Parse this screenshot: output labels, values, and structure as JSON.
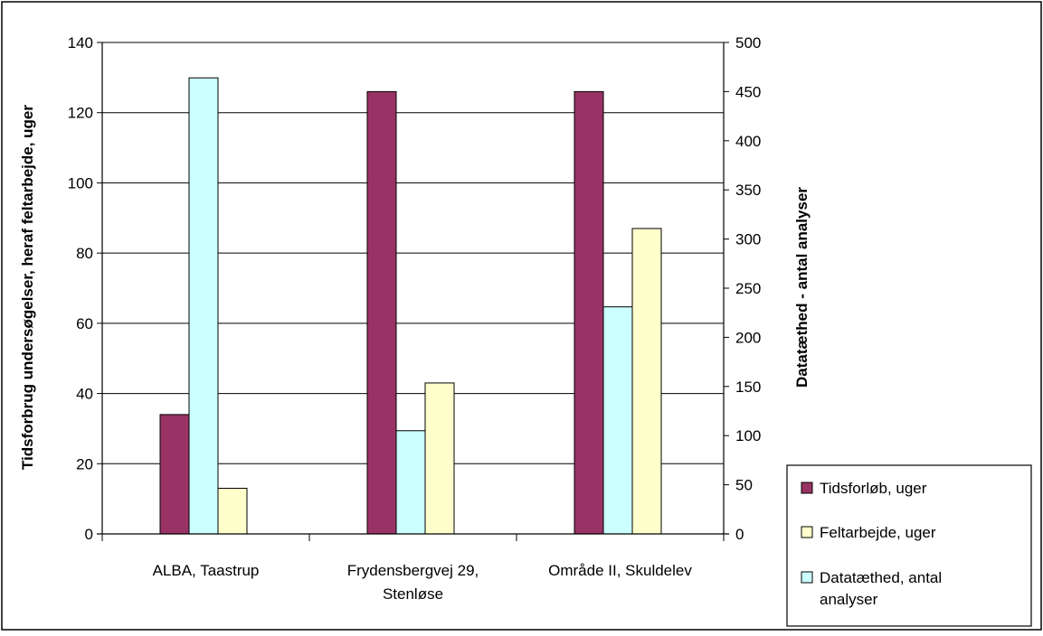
{
  "chart_data": {
    "type": "bar",
    "categories": [
      [
        "ALBA, Taastrup"
      ],
      [
        "Frydensbergvej 29,",
        "Stenløse"
      ],
      [
        "Område II, Skuldelev"
      ]
    ],
    "series": [
      {
        "name": "Tidsforløb, uger",
        "axis": "left",
        "color": "#993366",
        "values": [
          34,
          126,
          126
        ]
      },
      {
        "name": "Datatæthed, antal analyser",
        "axis": "right",
        "color": "#ccffff",
        "values": [
          464,
          105,
          231
        ]
      },
      {
        "name": "Feltarbejde, uger",
        "axis": "left",
        "color": "#ffffcc",
        "values": [
          13,
          43,
          87
        ]
      }
    ],
    "legend_order": [
      0,
      2,
      1
    ],
    "legend_labels": [
      [
        "Tidsforløb, uger"
      ],
      [
        "Feltarbejde, uger"
      ],
      [
        "Datatæthed, antal",
        "analyser"
      ]
    ],
    "ylabel": "Tidsforbrug undersøgelser, heraf feltarbejde, uger",
    "y2label": "Datatæthed - antal analyser",
    "ylim": [
      0,
      140
    ],
    "y2lim": [
      0,
      500
    ],
    "yticks": [
      0,
      20,
      40,
      60,
      80,
      100,
      120,
      140
    ],
    "y2ticks": [
      0,
      50,
      100,
      150,
      200,
      250,
      300,
      350,
      400,
      450,
      500
    ],
    "grid": true,
    "legend_position": "bottom-right"
  }
}
